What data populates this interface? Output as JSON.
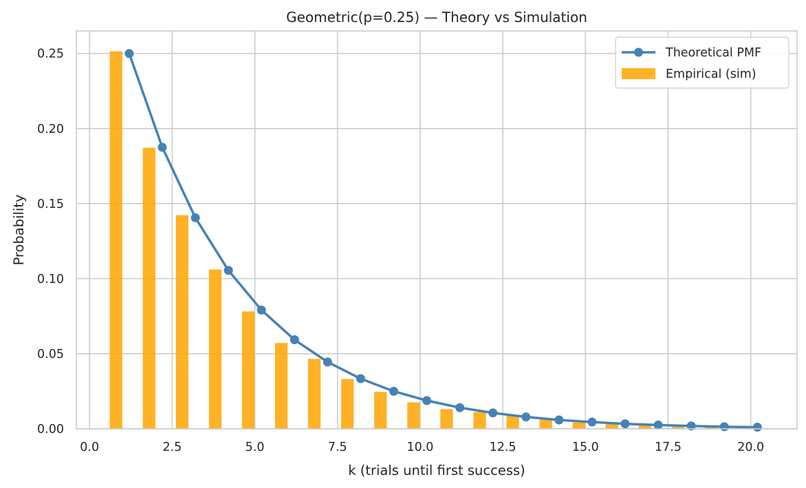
{
  "chart_data": {
    "type": "bar+line",
    "title": "Geometric(p=0.25) — Theory vs Simulation",
    "xlabel": "k (trials until first success)",
    "ylabel": "Probability",
    "xlim": [
      -0.4,
      21.4
    ],
    "ylim": [
      0,
      0.265
    ],
    "grid": true,
    "legend_position": "top-right",
    "x_ticks": [
      0.0,
      2.5,
      5.0,
      7.5,
      10.0,
      12.5,
      15.0,
      17.5,
      20.0
    ],
    "x_tick_labels": [
      "0.0",
      "2.5",
      "5.0",
      "7.5",
      "10.0",
      "12.5",
      "15.0",
      "17.5",
      "20.0"
    ],
    "y_ticks": [
      0.0,
      0.05,
      0.1,
      0.15,
      0.2,
      0.25
    ],
    "y_tick_labels": [
      "0.00",
      "0.05",
      "0.10",
      "0.15",
      "0.20",
      "0.25"
    ],
    "colors": {
      "line": "#4682b4",
      "bar": "#ffa500",
      "grid": "#cccccc",
      "spine": "#cccccc",
      "text": "#262626"
    },
    "series": [
      {
        "name": "Theoretical PMF",
        "kind": "line",
        "x": [
          1.2,
          2.2,
          3.2,
          4.2,
          5.2,
          6.2,
          7.2,
          8.2,
          9.2,
          10.2,
          11.2,
          12.2,
          13.2,
          14.2,
          15.2,
          16.2,
          17.2,
          18.2,
          19.2,
          20.2
        ],
        "values": [
          0.25,
          0.1875,
          0.1406,
          0.1055,
          0.0791,
          0.0593,
          0.0445,
          0.0334,
          0.025,
          0.0188,
          0.0141,
          0.0106,
          0.0079,
          0.0059,
          0.0045,
          0.0033,
          0.0025,
          0.0019,
          0.0014,
          0.0011
        ]
      },
      {
        "name": "Empirical (sim)",
        "kind": "bar",
        "x": [
          0.8,
          1.8,
          2.8,
          3.8,
          4.8,
          5.8,
          6.8,
          7.8,
          8.8,
          9.8,
          10.8,
          11.8,
          12.8,
          13.8,
          14.8,
          15.8,
          16.8,
          17.8,
          18.8,
          19.8
        ],
        "bar_width": 0.38,
        "values": [
          0.2515,
          0.1872,
          0.1423,
          0.1061,
          0.0782,
          0.0572,
          0.0466,
          0.0332,
          0.0246,
          0.0176,
          0.0131,
          0.0112,
          0.0087,
          0.0061,
          0.0042,
          0.0033,
          0.0023,
          0.0019,
          0.0013,
          0.001
        ]
      }
    ]
  }
}
